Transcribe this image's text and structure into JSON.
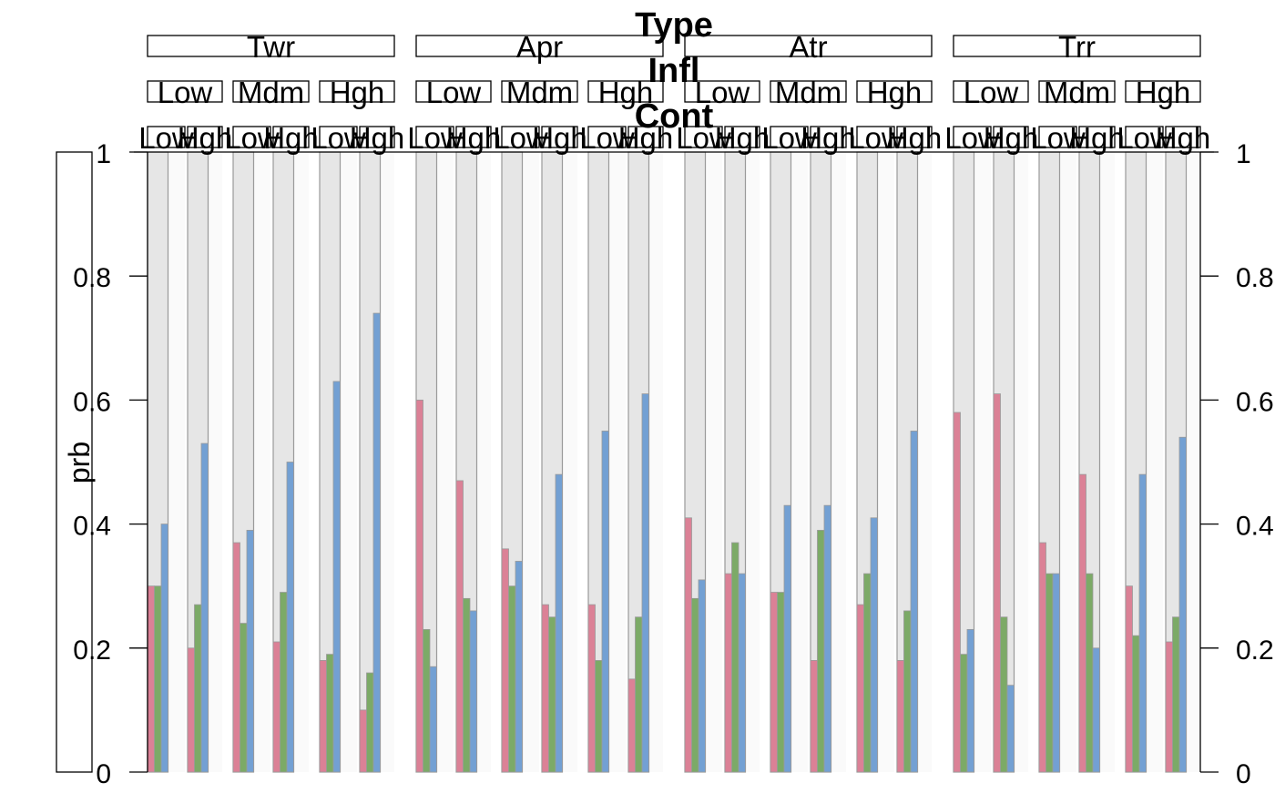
{
  "chart_data": {
    "type": "bar",
    "facet_titles": [
      "Type",
      "Infl",
      "Cont"
    ],
    "type_levels": [
      "Twr",
      "Apr",
      "Atr",
      "Trr"
    ],
    "infl_levels": [
      "Low",
      "Mdm",
      "Hgh"
    ],
    "cont_levels": [
      "Low",
      "Hgh"
    ],
    "series_colors": [
      "#DB8196",
      "#7CAA67",
      "#73A0D3"
    ],
    "ylabel": "prb",
    "ylim": [
      0,
      1
    ],
    "yticks": [
      "0",
      "0.2",
      "0.4",
      "0.6",
      "0.8",
      "1"
    ],
    "ytick_values": [
      0,
      0.2,
      0.4,
      0.6,
      0.8,
      1
    ],
    "groups": [
      {
        "type": "Twr",
        "infl": "Low",
        "cont": "Low",
        "values": [
          0.3,
          0.3,
          0.4
        ]
      },
      {
        "type": "Twr",
        "infl": "Low",
        "cont": "Hgh",
        "values": [
          0.2,
          0.27,
          0.53
        ]
      },
      {
        "type": "Twr",
        "infl": "Mdm",
        "cont": "Low",
        "values": [
          0.37,
          0.24,
          0.39
        ]
      },
      {
        "type": "Twr",
        "infl": "Mdm",
        "cont": "Hgh",
        "values": [
          0.21,
          0.29,
          0.5
        ]
      },
      {
        "type": "Twr",
        "infl": "Hgh",
        "cont": "Low",
        "values": [
          0.18,
          0.19,
          0.63
        ]
      },
      {
        "type": "Twr",
        "infl": "Hgh",
        "cont": "Hgh",
        "values": [
          0.1,
          0.16,
          0.74
        ]
      },
      {
        "type": "Apr",
        "infl": "Low",
        "cont": "Low",
        "values": [
          0.6,
          0.23,
          0.17
        ]
      },
      {
        "type": "Apr",
        "infl": "Low",
        "cont": "Hgh",
        "values": [
          0.47,
          0.28,
          0.26
        ]
      },
      {
        "type": "Apr",
        "infl": "Mdm",
        "cont": "Low",
        "values": [
          0.36,
          0.3,
          0.34
        ]
      },
      {
        "type": "Apr",
        "infl": "Mdm",
        "cont": "Hgh",
        "values": [
          0.27,
          0.25,
          0.48
        ]
      },
      {
        "type": "Apr",
        "infl": "Hgh",
        "cont": "Low",
        "values": [
          0.27,
          0.18,
          0.55
        ]
      },
      {
        "type": "Apr",
        "infl": "Hgh",
        "cont": "Hgh",
        "values": [
          0.15,
          0.25,
          0.61
        ]
      },
      {
        "type": "Atr",
        "infl": "Low",
        "cont": "Low",
        "values": [
          0.41,
          0.28,
          0.31
        ]
      },
      {
        "type": "Atr",
        "infl": "Low",
        "cont": "Hgh",
        "values": [
          0.32,
          0.37,
          0.32
        ]
      },
      {
        "type": "Atr",
        "infl": "Mdm",
        "cont": "Low",
        "values": [
          0.29,
          0.29,
          0.43
        ]
      },
      {
        "type": "Atr",
        "infl": "Mdm",
        "cont": "Hgh",
        "values": [
          0.18,
          0.39,
          0.43
        ]
      },
      {
        "type": "Atr",
        "infl": "Hgh",
        "cont": "Low",
        "values": [
          0.27,
          0.32,
          0.41
        ]
      },
      {
        "type": "Atr",
        "infl": "Hgh",
        "cont": "Hgh",
        "values": [
          0.18,
          0.26,
          0.55
        ]
      },
      {
        "type": "Trr",
        "infl": "Low",
        "cont": "Low",
        "values": [
          0.58,
          0.19,
          0.23
        ]
      },
      {
        "type": "Trr",
        "infl": "Low",
        "cont": "Hgh",
        "values": [
          0.61,
          0.25,
          0.14
        ]
      },
      {
        "type": "Trr",
        "infl": "Mdm",
        "cont": "Low",
        "values": [
          0.37,
          0.32,
          0.32
        ]
      },
      {
        "type": "Trr",
        "infl": "Mdm",
        "cont": "Hgh",
        "values": [
          0.48,
          0.32,
          0.2
        ]
      },
      {
        "type": "Trr",
        "infl": "Hgh",
        "cont": "Low",
        "values": [
          0.3,
          0.22,
          0.48
        ]
      },
      {
        "type": "Trr",
        "infl": "Hgh",
        "cont": "Hgh",
        "values": [
          0.21,
          0.25,
          0.54
        ]
      }
    ]
  }
}
